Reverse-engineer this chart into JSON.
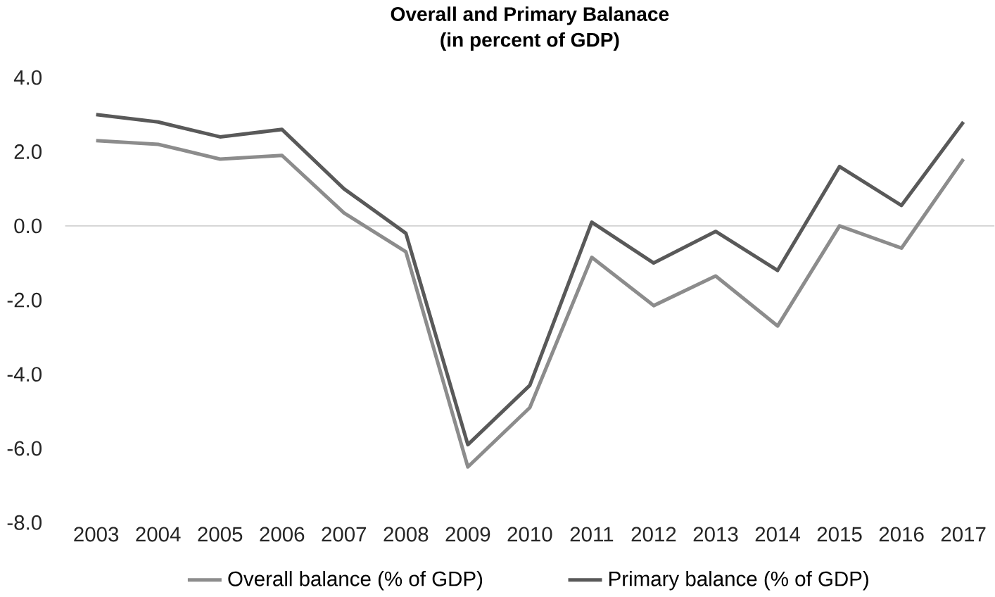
{
  "chart_data": {
    "type": "line",
    "title": "Overall and Primary Balanace",
    "subtitle": "(in percent of GDP)",
    "categories": [
      "2003",
      "2004",
      "2005",
      "2006",
      "2007",
      "2008",
      "2009",
      "2010",
      "2011",
      "2012",
      "2013",
      "2014",
      "2015",
      "2016",
      "2017"
    ],
    "series": [
      {
        "name": "Overall balance (% of GDP)",
        "color": "#8c8c8c",
        "values": [
          2.3,
          2.2,
          1.8,
          1.9,
          0.35,
          -0.7,
          -6.5,
          -4.9,
          -0.85,
          -2.15,
          -1.35,
          -2.7,
          0.0,
          -0.6,
          1.8
        ]
      },
      {
        "name": "Primary balance (% of GDP)",
        "color": "#595959",
        "values": [
          3.0,
          2.8,
          2.4,
          2.6,
          1.0,
          -0.2,
          -5.9,
          -4.3,
          0.1,
          -1.0,
          -0.15,
          -1.2,
          1.6,
          0.55,
          2.8
        ]
      }
    ],
    "ylim": [
      -8.0,
      4.0
    ],
    "yticks": [
      {
        "value": -8,
        "label": "-8.0"
      },
      {
        "value": -6,
        "label": "-6.0"
      },
      {
        "value": -4,
        "label": "-4.0"
      },
      {
        "value": -2,
        "label": "-2.0"
      },
      {
        "value": 0,
        "label": "0.0"
      },
      {
        "value": 2,
        "label": "2.0"
      },
      {
        "value": 4,
        "label": "4.0"
      }
    ],
    "legend": "bottom",
    "marker": "none",
    "line_style": "solid"
  }
}
